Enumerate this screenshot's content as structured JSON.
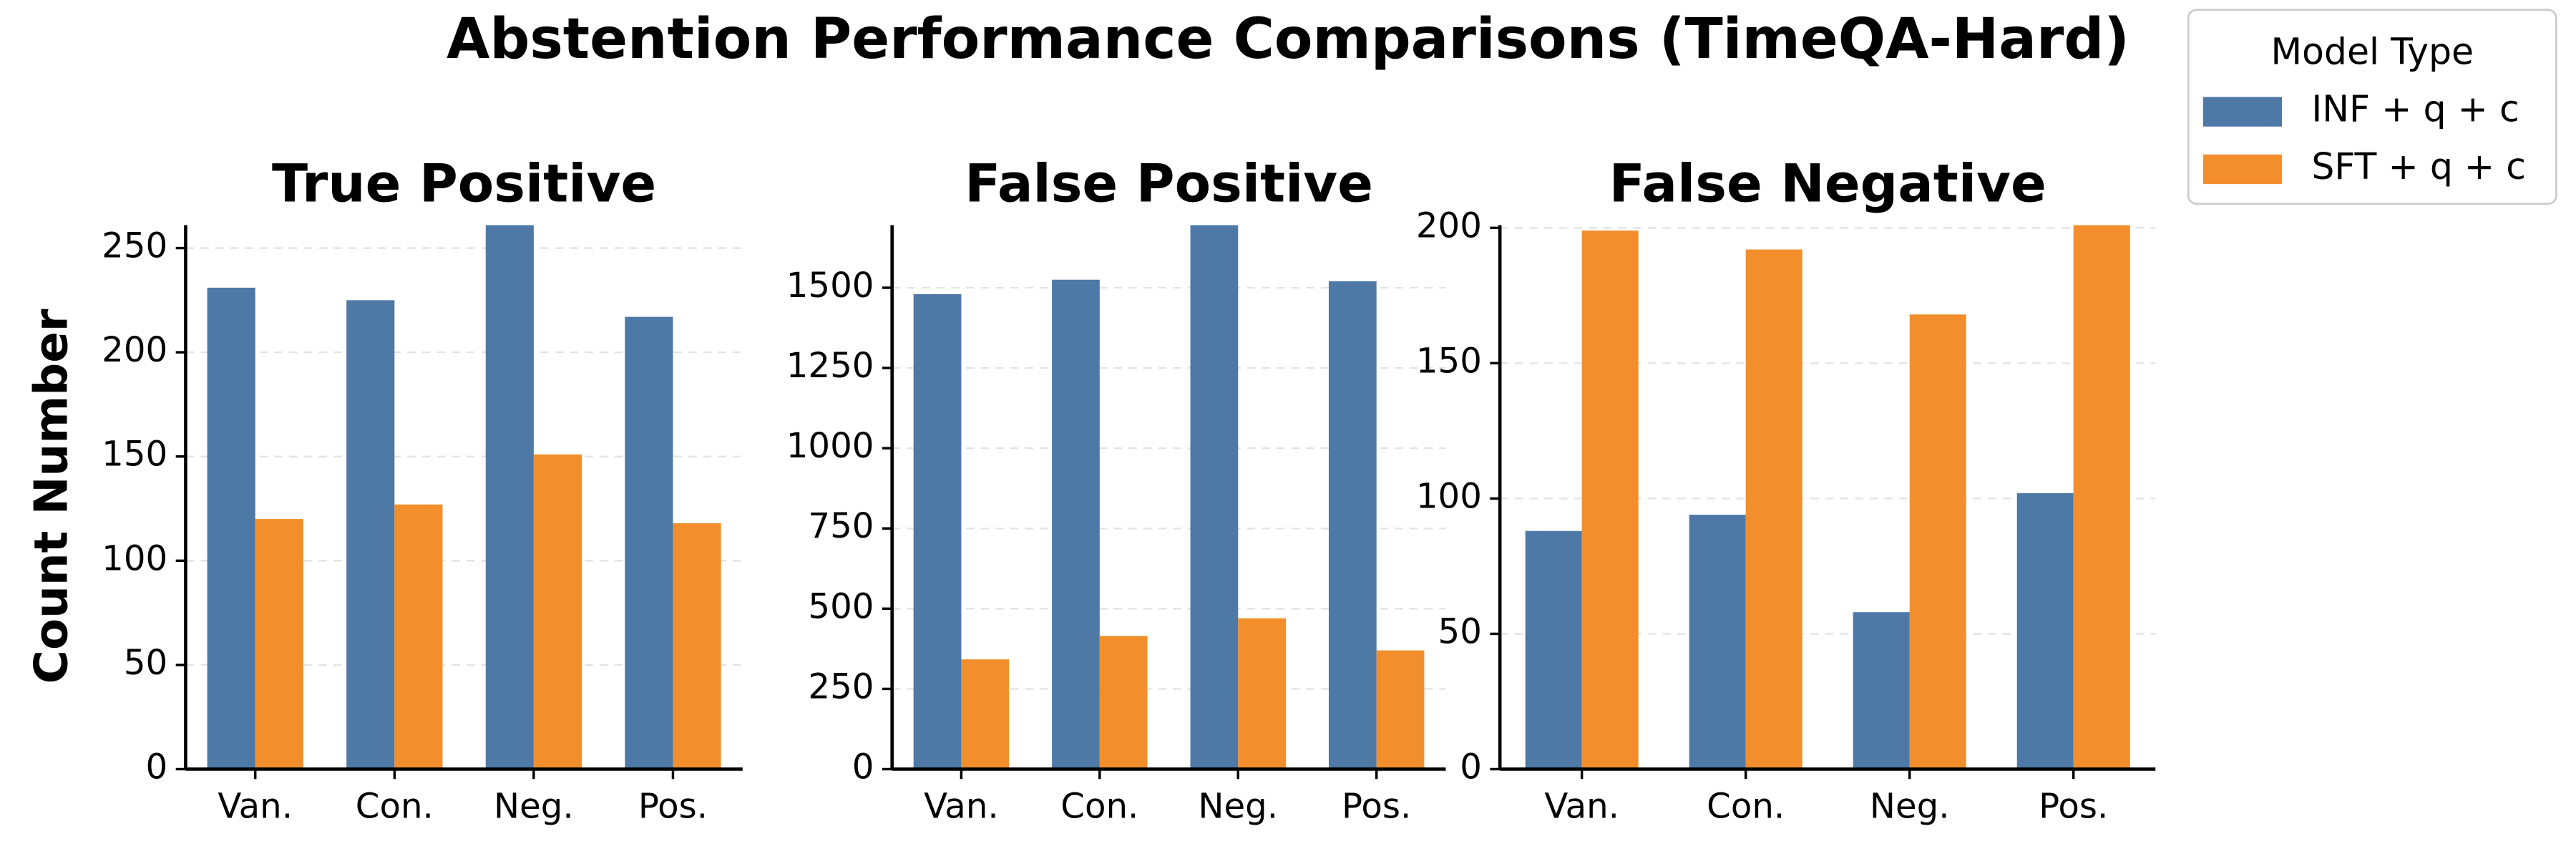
{
  "title": "Abstention Performance Comparisons (TimeQA-Hard)",
  "y_label": "Count Number",
  "legend_title": "Model Type",
  "chart_data": [
    {
      "type": "bar",
      "title": "True Positive",
      "categories": [
        "Van.",
        "Con.",
        "Neg.",
        "Pos."
      ],
      "series": [
        {
          "name": "INF + q + c",
          "color": "#4e79a7",
          "values": [
            231,
            225,
            261,
            217
          ]
        },
        {
          "name": "SFT + q + c",
          "color": "#f28e2b",
          "values": [
            120,
            127,
            151,
            118
          ]
        }
      ],
      "ylim": [
        0,
        261
      ],
      "yticks": [
        0,
        50,
        100,
        150,
        200,
        250
      ],
      "grid": true
    },
    {
      "type": "bar",
      "title": "False Positive",
      "categories": [
        "Van.",
        "Con.",
        "Neg.",
        "Pos."
      ],
      "series": [
        {
          "name": "INF + q + c",
          "color": "#4e79a7",
          "values": [
            1480,
            1525,
            1695,
            1520
          ]
        },
        {
          "name": "SFT + q + c",
          "color": "#f28e2b",
          "values": [
            342,
            415,
            470,
            370
          ]
        }
      ],
      "ylim": [
        0,
        1695
      ],
      "yticks": [
        0,
        250,
        500,
        750,
        1000,
        1250,
        1500
      ],
      "grid": true
    },
    {
      "type": "bar",
      "title": "False Negative",
      "categories": [
        "Van.",
        "Con.",
        "Neg.",
        "Pos."
      ],
      "series": [
        {
          "name": "INF + q + c",
          "color": "#4e79a7",
          "values": [
            88,
            94,
            58,
            102
          ]
        },
        {
          "name": "SFT + q + c",
          "color": "#f28e2b",
          "values": [
            199,
            192,
            168,
            201
          ]
        }
      ],
      "ylim": [
        0,
        201
      ],
      "yticks": [
        0,
        50,
        100,
        150,
        200
      ],
      "grid": true
    }
  ]
}
